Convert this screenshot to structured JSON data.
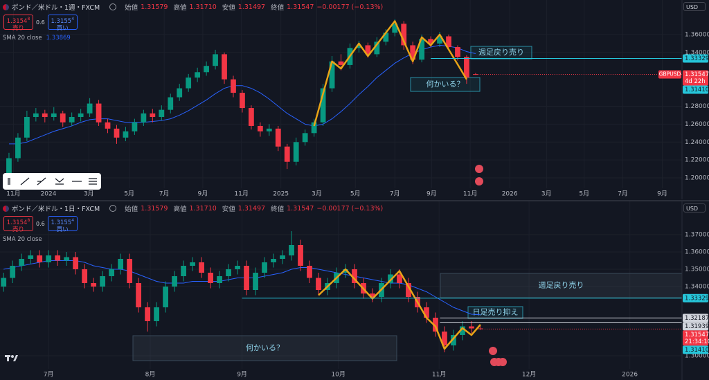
{
  "panels": [
    {
      "symbol": "ポンド／米ドル・1週・FXCM",
      "ohlc": [
        {
          "label": "始値",
          "value": "1.31579"
        },
        {
          "label": "高値",
          "value": "1.31710"
        },
        {
          "label": "安値",
          "value": "1.31497"
        },
        {
          "label": "終値",
          "value": "1.31547"
        }
      ],
      "change": "−0.00177 (−0.13%)",
      "sell": {
        "price": "1.3154",
        "pip": "8",
        "label": "売り"
      },
      "spread": "0.6",
      "buy": {
        "price": "1.3155",
        "pip": "4",
        "label": "買い"
      },
      "indicator_value": "1.33869",
      "currency": "USD"
    },
    {
      "symbol": "ポンド／米ドル・1日・FXCM",
      "ohlc": [
        {
          "label": "始値",
          "value": "1.31579"
        },
        {
          "label": "高値",
          "value": "1.31710"
        },
        {
          "label": "安値",
          "value": "1.31497"
        },
        {
          "label": "終値",
          "value": "1.31547"
        }
      ],
      "change": "−0.00177 (−0.13%)",
      "sell": {
        "price": "1.3154",
        "pip": "8",
        "label": "売り"
      },
      "spread": "0.6",
      "buy": {
        "price": "1.3155",
        "pip": "4",
        "label": "買い"
      },
      "currency": "USD"
    }
  ],
  "chart_data": [
    {
      "type": "candlestick",
      "up_color": "#089981",
      "down_color": "#f23645",
      "xlim": [
        -1,
        75
      ],
      "ylim": [
        1.19,
        1.38
      ],
      "xticks": [
        {
          "value": 0.5,
          "label": "11月"
        },
        {
          "value": 4.4,
          "label": "2024"
        },
        {
          "value": 8.9,
          "label": "3月"
        },
        {
          "value": 13.4,
          "label": "5月"
        },
        {
          "value": 17.3,
          "label": "7月"
        },
        {
          "value": 21.6,
          "label": "9月"
        },
        {
          "value": 25.9,
          "label": "11月"
        },
        {
          "value": 30.3,
          "label": "2025"
        },
        {
          "value": 34.3,
          "label": "3月"
        },
        {
          "value": 38.6,
          "label": "5月"
        },
        {
          "value": 43,
          "label": "7月"
        },
        {
          "value": 47.1,
          "label": "9月"
        },
        {
          "value": 51.4,
          "label": "11月"
        },
        {
          "value": 55.8,
          "label": "2026"
        },
        {
          "value": 59.9,
          "label": "3月"
        },
        {
          "value": 64.1,
          "label": "5月"
        },
        {
          "value": 68.4,
          "label": "7月"
        },
        {
          "value": 72.8,
          "label": "9月"
        }
      ],
      "yticks": [
        {
          "value": 1.2,
          "label": "1.20000"
        },
        {
          "value": 1.22,
          "label": "1.22000"
        },
        {
          "value": 1.24,
          "label": "1.24000"
        },
        {
          "value": 1.26,
          "label": "1.26000"
        },
        {
          "value": 1.28,
          "label": "1.28000"
        },
        {
          "value": 1.34,
          "label": "1.34000"
        },
        {
          "value": 1.36,
          "label": "1.36000"
        }
      ],
      "open": [
        1.205,
        1.222,
        1.245,
        1.268,
        1.272,
        1.268,
        1.272,
        1.262,
        1.268,
        1.272,
        1.283,
        1.262,
        1.255,
        1.245,
        1.252,
        1.262,
        1.272,
        1.268,
        1.276,
        1.29,
        1.3,
        1.312,
        1.318,
        1.325,
        1.338,
        1.31,
        1.295,
        1.278,
        1.258,
        1.252,
        1.255,
        1.235,
        1.218,
        1.24,
        1.25,
        1.262,
        1.3,
        1.33,
        1.326,
        1.345,
        1.348,
        1.338,
        1.352,
        1.362,
        1.372,
        1.348,
        1.332,
        1.355,
        1.35,
        1.358,
        1.346,
        1.335,
        1.31579
      ],
      "high": [
        1.228,
        1.25,
        1.275,
        1.278,
        1.276,
        1.279,
        1.275,
        1.273,
        1.277,
        1.289,
        1.287,
        1.266,
        1.259,
        1.257,
        1.266,
        1.276,
        1.277,
        1.281,
        1.294,
        1.305,
        1.316,
        1.323,
        1.33,
        1.343,
        1.34,
        1.314,
        1.298,
        1.281,
        1.262,
        1.26,
        1.258,
        1.238,
        1.245,
        1.254,
        1.266,
        1.305,
        1.336,
        1.338,
        1.35,
        1.353,
        1.351,
        1.357,
        1.366,
        1.377,
        1.375,
        1.352,
        1.36,
        1.358,
        1.363,
        1.36,
        1.348,
        1.337,
        1.3171
      ],
      "low": [
        1.2,
        1.218,
        1.241,
        1.263,
        1.262,
        1.264,
        1.257,
        1.258,
        1.263,
        1.268,
        1.258,
        1.25,
        1.238,
        1.241,
        1.248,
        1.258,
        1.262,
        1.264,
        1.272,
        1.286,
        1.296,
        1.307,
        1.314,
        1.321,
        1.305,
        1.29,
        1.273,
        1.254,
        1.246,
        1.247,
        1.23,
        1.21,
        1.214,
        1.236,
        1.246,
        1.258,
        1.296,
        1.32,
        1.322,
        1.34,
        1.334,
        1.335,
        1.348,
        1.358,
        1.343,
        1.327,
        1.329,
        1.346,
        1.346,
        1.342,
        1.331,
        1.305,
        1.31497
      ],
      "close": [
        1.222,
        1.245,
        1.268,
        1.272,
        1.268,
        1.272,
        1.262,
        1.268,
        1.272,
        1.283,
        1.262,
        1.255,
        1.245,
        1.252,
        1.262,
        1.272,
        1.268,
        1.276,
        1.29,
        1.3,
        1.312,
        1.318,
        1.325,
        1.338,
        1.31,
        1.295,
        1.278,
        1.258,
        1.252,
        1.255,
        1.235,
        1.218,
        1.24,
        1.25,
        1.262,
        1.3,
        1.33,
        1.326,
        1.345,
        1.348,
        1.338,
        1.352,
        1.362,
        1.372,
        1.348,
        1.332,
        1.355,
        1.35,
        1.358,
        1.346,
        1.335,
        1.312,
        1.31547
      ],
      "series": [
        {
          "name": "SMA 20 close",
          "color": "#2962ff",
          "values": [
            1.238,
            1.238,
            1.24,
            1.244,
            1.248,
            1.252,
            1.255,
            1.258,
            1.262,
            1.265,
            1.266,
            1.266,
            1.264,
            1.262,
            1.262,
            1.262,
            1.263,
            1.264,
            1.266,
            1.27,
            1.275,
            1.281,
            1.287,
            1.294,
            1.3,
            1.303,
            1.303,
            1.3,
            1.295,
            1.288,
            1.28,
            1.272,
            1.266,
            1.26,
            1.258,
            1.26,
            1.266,
            1.274,
            1.283,
            1.293,
            1.302,
            1.312,
            1.32,
            1.328,
            1.334,
            1.339,
            1.343,
            1.346,
            1.348,
            1.347,
            1.345,
            1.341,
            1.33869
          ]
        }
      ],
      "zigzag": {
        "color": "#e8a317",
        "x": [
          34,
          36,
          37,
          39,
          40,
          43,
          45,
          46,
          47,
          48,
          51
        ],
        "values": [
          1.258,
          1.33,
          1.322,
          1.35,
          1.336,
          1.375,
          1.33,
          1.357,
          1.348,
          1.36,
          1.31
        ]
      },
      "levels": [
        {
          "value": 1.33329,
          "x_from": 47,
          "color": "#26c6da"
        },
        {
          "value": 1.3141,
          "label": "1.31410",
          "color": "#26c6da"
        }
      ],
      "symbol_tag": "GBPUSD",
      "countdown": "4d 22h",
      "annotations": [
        "週足戻り売り",
        "何かいる？"
      ]
    },
    {
      "type": "candlestick",
      "up_color": "#089981",
      "down_color": "#f23645",
      "xlim": [
        -0.4,
        75.4
      ],
      "ylim": [
        1.295,
        1.378
      ],
      "xticks": [
        {
          "value": 5,
          "label": "7月"
        },
        {
          "value": 16.3,
          "label": "8月"
        },
        {
          "value": 26.5,
          "label": "9月"
        },
        {
          "value": 37.2,
          "label": "10月"
        },
        {
          "value": 48.4,
          "label": "11月"
        },
        {
          "value": 58.4,
          "label": "12月"
        },
        {
          "value": 69.6,
          "label": "2026"
        }
      ],
      "yticks": [
        {
          "value": 1.3,
          "label": "1.30000"
        },
        {
          "value": 1.34,
          "label": "1.34000"
        },
        {
          "value": 1.35,
          "label": "1.35000"
        },
        {
          "value": 1.36,
          "label": "1.36000"
        },
        {
          "value": 1.37,
          "label": "1.37000"
        }
      ],
      "open": [
        1.34,
        1.345,
        1.352,
        1.356,
        1.358,
        1.354,
        1.358,
        1.355,
        1.357,
        1.35,
        1.342,
        1.34,
        1.346,
        1.35,
        1.356,
        1.342,
        1.328,
        1.32,
        1.328,
        1.34,
        1.346,
        1.352,
        1.354,
        1.348,
        1.342,
        1.346,
        1.35,
        1.352,
        1.338,
        1.348,
        1.354,
        1.356,
        1.358,
        1.364,
        1.352,
        1.345,
        1.338,
        1.342,
        1.348,
        1.35,
        1.342,
        1.336,
        1.334,
        1.342,
        1.347,
        1.342,
        1.334,
        1.328,
        1.322,
        1.314,
        1.306,
        1.312,
        1.317,
        1.31579
      ],
      "high": [
        1.348,
        1.355,
        1.359,
        1.361,
        1.361,
        1.361,
        1.361,
        1.36,
        1.36,
        1.353,
        1.345,
        1.349,
        1.353,
        1.359,
        1.359,
        1.345,
        1.331,
        1.331,
        1.343,
        1.349,
        1.355,
        1.357,
        1.357,
        1.351,
        1.349,
        1.353,
        1.355,
        1.355,
        1.351,
        1.357,
        1.359,
        1.361,
        1.372,
        1.367,
        1.355,
        1.348,
        1.345,
        1.351,
        1.353,
        1.353,
        1.345,
        1.339,
        1.345,
        1.35,
        1.35,
        1.345,
        1.337,
        1.331,
        1.325,
        1.317,
        1.315,
        1.32,
        1.32,
        1.3171
      ],
      "low": [
        1.337,
        1.342,
        1.349,
        1.353,
        1.351,
        1.351,
        1.352,
        1.352,
        1.347,
        1.339,
        1.337,
        1.337,
        1.343,
        1.347,
        1.339,
        1.325,
        1.314,
        1.317,
        1.325,
        1.337,
        1.343,
        1.349,
        1.345,
        1.339,
        1.339,
        1.343,
        1.347,
        1.335,
        1.335,
        1.345,
        1.351,
        1.353,
        1.355,
        1.349,
        1.342,
        1.335,
        1.335,
        1.339,
        1.345,
        1.339,
        1.333,
        1.331,
        1.331,
        1.339,
        1.339,
        1.331,
        1.325,
        1.319,
        1.311,
        1.302,
        1.303,
        1.309,
        1.313,
        1.31497
      ],
      "close": [
        1.345,
        1.352,
        1.356,
        1.358,
        1.354,
        1.358,
        1.355,
        1.357,
        1.35,
        1.342,
        1.34,
        1.346,
        1.35,
        1.356,
        1.342,
        1.328,
        1.32,
        1.328,
        1.34,
        1.346,
        1.352,
        1.354,
        1.348,
        1.342,
        1.346,
        1.35,
        1.352,
        1.338,
        1.348,
        1.354,
        1.356,
        1.358,
        1.364,
        1.352,
        1.345,
        1.338,
        1.342,
        1.348,
        1.35,
        1.342,
        1.336,
        1.334,
        1.342,
        1.347,
        1.342,
        1.334,
        1.328,
        1.322,
        1.314,
        1.306,
        1.312,
        1.317,
        1.3158,
        1.31547
      ],
      "series": [
        {
          "name": "SMA 20 close",
          "color": "#2962ff",
          "values": [
            1.35,
            1.351,
            1.352,
            1.353,
            1.354,
            1.355,
            1.355,
            1.355,
            1.355,
            1.354,
            1.352,
            1.351,
            1.35,
            1.35,
            1.349,
            1.347,
            1.345,
            1.343,
            1.342,
            1.342,
            1.342,
            1.343,
            1.343,
            1.343,
            1.343,
            1.344,
            1.345,
            1.345,
            1.345,
            1.346,
            1.347,
            1.348,
            1.35,
            1.351,
            1.351,
            1.35,
            1.349,
            1.348,
            1.347,
            1.346,
            1.345,
            1.344,
            1.343,
            1.342,
            1.342,
            1.341,
            1.339,
            1.337,
            1.334,
            1.331,
            1.328,
            1.326,
            1.324,
            1.3237
          ]
        }
      ],
      "zigzag": {
        "color": "#e8a317",
        "x": [
          35,
          38,
          41,
          44,
          47,
          48,
          49,
          51,
          52,
          53
        ],
        "values": [
          1.335,
          1.35,
          1.333,
          1.349,
          1.322,
          1.317,
          1.304,
          1.316,
          1.312,
          1.318
        ]
      },
      "levels": [
        {
          "value": 1.33329,
          "x_from": 26.5,
          "color": "#26c6da"
        },
        {
          "value": 1.32187,
          "x_from": 48.5,
          "color": "#d1d4dc"
        },
        {
          "value": 1.31939,
          "x_from": 48.5,
          "color": "#d1d4dc"
        },
        {
          "value": 1.3141,
          "label": "1.31410",
          "color": "#26c6da"
        }
      ],
      "countdown": "21:34:10",
      "annotations": [
        "週足戻り売り",
        "日足売り抑え",
        "何かいる？"
      ]
    }
  ]
}
